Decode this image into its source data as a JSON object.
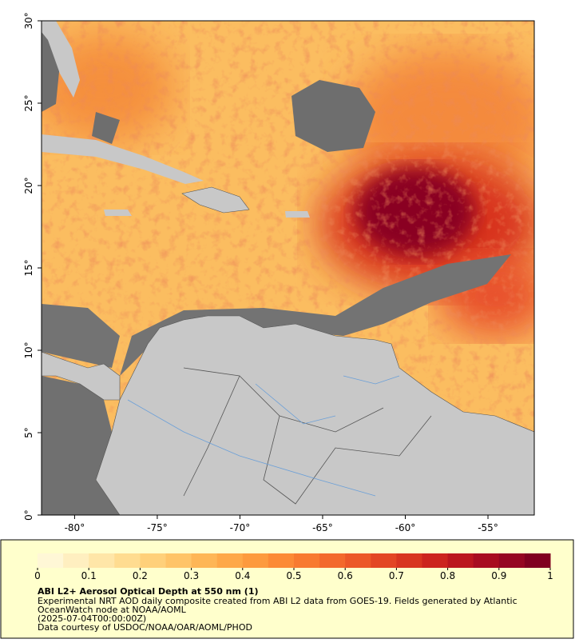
{
  "map": {
    "xlim": [
      -82,
      -52.2
    ],
    "ylim": [
      0,
      30
    ],
    "xticks": [
      {
        "value": -80,
        "label": "-80°"
      },
      {
        "value": -75,
        "label": "-75°"
      },
      {
        "value": -70,
        "label": "-70°"
      },
      {
        "value": -65,
        "label": "-65°"
      },
      {
        "value": -60,
        "label": "-60°"
      },
      {
        "value": -55,
        "label": "-55°"
      }
    ],
    "yticks": [
      {
        "value": 0,
        "label": "0°"
      },
      {
        "value": 5,
        "label": "5°"
      },
      {
        "value": 10,
        "label": "10°"
      },
      {
        "value": 15,
        "label": "15°"
      },
      {
        "value": 20,
        "label": "20°"
      },
      {
        "value": 25,
        "label": "25°"
      },
      {
        "value": 30,
        "label": "30°"
      }
    ]
  },
  "colorbar": {
    "lim": [
      0,
      1
    ],
    "ticks": [
      0,
      0.1,
      0.2,
      0.3,
      0.4,
      0.5,
      0.6,
      0.7,
      0.8,
      0.9,
      1
    ],
    "colors": [
      "#fff7d6",
      "#ffefc0",
      "#ffe6a8",
      "#ffdc90",
      "#ffd07a",
      "#ffc468",
      "#feb656",
      "#fea848",
      "#fd9a3e",
      "#fc8a36",
      "#f87a30",
      "#f3692c",
      "#ec5828",
      "#e34624",
      "#d83520",
      "#cc241e",
      "#bb161e",
      "#a80c20",
      "#950622",
      "#800020"
    ]
  },
  "caption": {
    "title": "ABI L2+ Aerosol Optical Depth at 550 nm (1)",
    "lines": [
      "Experimental NRT AOD daily composite created from ABI L2 data from GOES-19. Fields generated by Atlantic",
      "OceanWatch node at NOAA/AOML",
      "(2025-07-04T00:00:00Z)",
      "Data courtesy of USDOC/NOAA/OAR/AOML/PHOD"
    ]
  }
}
